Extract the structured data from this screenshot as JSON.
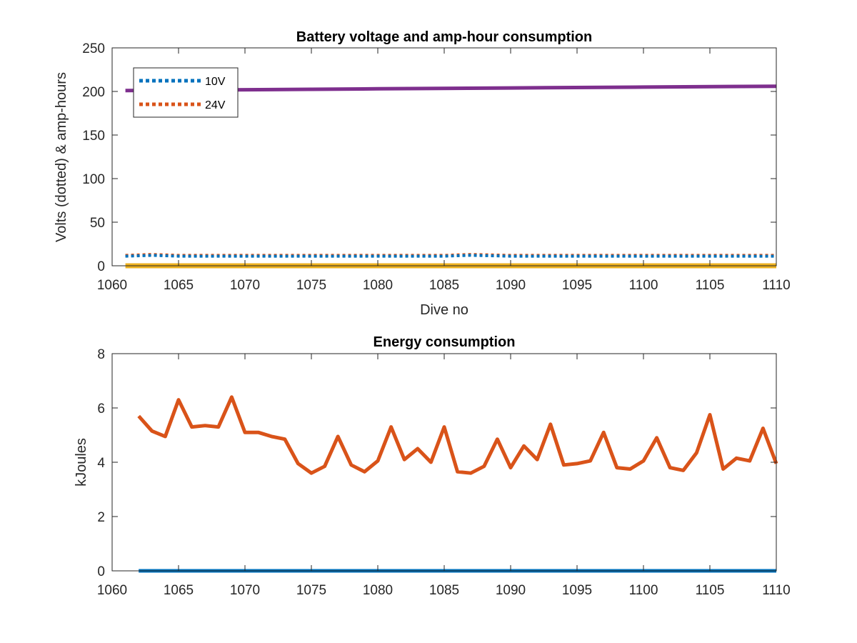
{
  "chart_data": [
    {
      "type": "line",
      "title": "Battery voltage and amp-hour consumption",
      "xlabel": "Dive no",
      "ylabel": "Volts (dotted) & amp-hours",
      "xlim": [
        1060,
        1110
      ],
      "ylim": [
        0,
        250
      ],
      "xticks": [
        1060,
        1065,
        1070,
        1075,
        1080,
        1085,
        1090,
        1095,
        1100,
        1105,
        1110
      ],
      "yticks": [
        0,
        50,
        100,
        150,
        200,
        250
      ],
      "grid": false,
      "legend_position": "top-left",
      "series": [
        {
          "name": "10V",
          "color": "#0072BD",
          "style": "dotted",
          "x": [
            1061,
            1063,
            1065,
            1070,
            1075,
            1080,
            1085,
            1087,
            1090,
            1095,
            1100,
            1105,
            1110
          ],
          "y": [
            11,
            12,
            11,
            11,
            11,
            11,
            11,
            12,
            11,
            11,
            11,
            11,
            11
          ]
        },
        {
          "name": "24V",
          "color": "#D95319",
          "style": "dotted",
          "x": [
            1061,
            1063,
            1065,
            1070,
            1075,
            1080,
            1085,
            1087,
            1090,
            1095,
            1100,
            1105,
            1110
          ],
          "y": [
            12,
            13,
            12,
            12,
            12,
            12,
            12,
            13,
            12,
            12,
            12,
            12,
            12
          ]
        },
        {
          "color": "#7E2F8E",
          "style": "solid",
          "x": [
            1061,
            1070,
            1080,
            1090,
            1100,
            1110
          ],
          "y": [
            201,
            202,
            203,
            204,
            205,
            206
          ]
        },
        {
          "color": "#EDB120",
          "style": "solid",
          "x": [
            1061,
            1110
          ],
          "y": [
            0,
            0
          ]
        }
      ]
    },
    {
      "type": "line",
      "title": "Energy consumption",
      "xlabel": "",
      "ylabel": "kJoules",
      "xlim": [
        1060,
        1110
      ],
      "ylim": [
        0,
        8
      ],
      "xticks": [
        1060,
        1065,
        1070,
        1075,
        1080,
        1085,
        1090,
        1095,
        1100,
        1105,
        1110
      ],
      "yticks": [
        0,
        2,
        4,
        6,
        8
      ],
      "grid": false,
      "series": [
        {
          "color": "#D95319",
          "style": "solid",
          "x": [
            1062,
            1063,
            1064,
            1065,
            1066,
            1067,
            1068,
            1069,
            1070,
            1071,
            1072,
            1073,
            1074,
            1075,
            1076,
            1077,
            1078,
            1079,
            1080,
            1081,
            1082,
            1083,
            1084,
            1085,
            1086,
            1087,
            1088,
            1089,
            1090,
            1091,
            1092,
            1093,
            1094,
            1095,
            1096,
            1097,
            1098,
            1099,
            1100,
            1101,
            1102,
            1103,
            1104,
            1105,
            1106,
            1107,
            1108,
            1109,
            1110
          ],
          "y": [
            5.7,
            5.15,
            4.95,
            6.3,
            5.3,
            5.35,
            5.3,
            6.4,
            5.1,
            5.1,
            4.95,
            4.85,
            3.95,
            3.6,
            3.85,
            4.95,
            3.9,
            3.65,
            4.05,
            5.3,
            4.1,
            4.5,
            4.0,
            5.3,
            3.65,
            3.6,
            3.85,
            4.85,
            3.8,
            4.6,
            4.1,
            5.4,
            3.9,
            3.95,
            4.05,
            5.1,
            3.8,
            3.75,
            4.05,
            4.9,
            3.8,
            3.7,
            4.35,
            5.75,
            3.75,
            4.15,
            4.05,
            5.25,
            3.95
          ]
        },
        {
          "color": "#0072BD",
          "style": "solid",
          "x": [
            1062,
            1110
          ],
          "y": [
            0,
            0
          ]
        }
      ]
    }
  ]
}
